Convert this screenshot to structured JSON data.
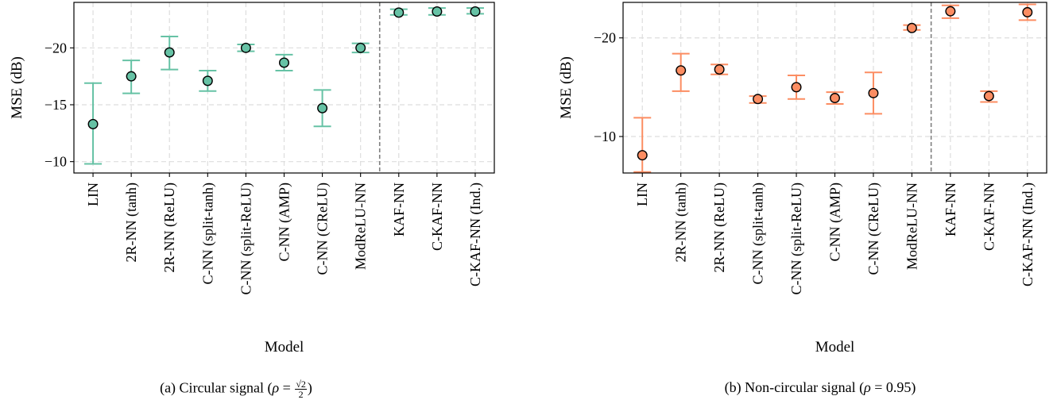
{
  "chart_data": [
    {
      "type": "scatter",
      "error_bars": true,
      "title": "",
      "xlabel": "Model",
      "ylabel": "MSE (dB)",
      "ylim": [
        -9,
        -24
      ],
      "y_axis_inverted": true,
      "yticks": [
        -10,
        -15,
        -20
      ],
      "ytick_labels": [
        "−10",
        "−15",
        "−20"
      ],
      "grid": true,
      "marker_color": "#66c2a5",
      "caption": {
        "prefix": "(a) Circular signal (",
        "rho": "ρ",
        "equals": " = ",
        "numerator": "√2",
        "denominator": "2",
        "suffix": ")"
      },
      "categories": [
        "LIN",
        "2R-NN (tanh)",
        "2R-NN (ReLU)",
        "C-NN (split-tanh)",
        "C-NN (split-ReLU)",
        "C-NN (AMP)",
        "C-NN (CReLU)",
        "ModReLU-NN",
        "KAF-NN",
        "C-KAF-NN",
        "C-KAF-NN (Ind.)"
      ],
      "values": [
        -13.3,
        -17.5,
        -19.6,
        -17.1,
        -20.0,
        -18.7,
        -14.7,
        -20.0,
        -23.1,
        -23.2,
        -23.2
      ],
      "err_low": [
        -9.8,
        -16.0,
        -18.1,
        -16.2,
        -19.7,
        -18.0,
        -13.1,
        -19.6,
        -22.9,
        -22.9,
        -23.0
      ],
      "err_high": [
        -16.9,
        -18.9,
        -21.0,
        -18.0,
        -20.3,
        -19.4,
        -16.3,
        -20.4,
        -23.4,
        -23.5,
        -23.5
      ],
      "separator_after_index": 7
    },
    {
      "type": "scatter",
      "error_bars": true,
      "title": "",
      "xlabel": "Model",
      "ylabel": "MSE (dB)",
      "ylim": [
        -6.3,
        -23.6
      ],
      "y_axis_inverted": true,
      "yticks": [
        -10,
        -20
      ],
      "ytick_labels": [
        "−10",
        "−20"
      ],
      "grid": true,
      "marker_color": "#fc8d62",
      "caption": {
        "prefix": "(b) Non-circular signal (",
        "rho": "ρ",
        "equals": " = ",
        "value": "0.95",
        "suffix": ")"
      },
      "categories": [
        "LIN",
        "2R-NN (tanh)",
        "2R-NN (ReLU)",
        "C-NN (split-tanh)",
        "C-NN (split-ReLU)",
        "C-NN (AMP)",
        "C-NN (CReLU)",
        "ModReLU-NN",
        "KAF-NN",
        "C-KAF-NN",
        "C-KAF-NN (Ind.)"
      ],
      "values": [
        -8.1,
        -16.7,
        -16.8,
        -13.8,
        -15.0,
        -13.9,
        -14.4,
        -21.0,
        -22.7,
        -14.1,
        -22.6
      ],
      "err_low": [
        -6.4,
        -14.6,
        -16.3,
        -13.4,
        -13.8,
        -13.3,
        -12.3,
        -20.8,
        -22.0,
        -13.5,
        -21.8
      ],
      "err_high": [
        -11.9,
        -18.4,
        -17.3,
        -14.1,
        -16.2,
        -14.5,
        -16.5,
        -21.3,
        -23.3,
        -14.6,
        -23.4
      ],
      "separator_after_index": 7
    }
  ]
}
